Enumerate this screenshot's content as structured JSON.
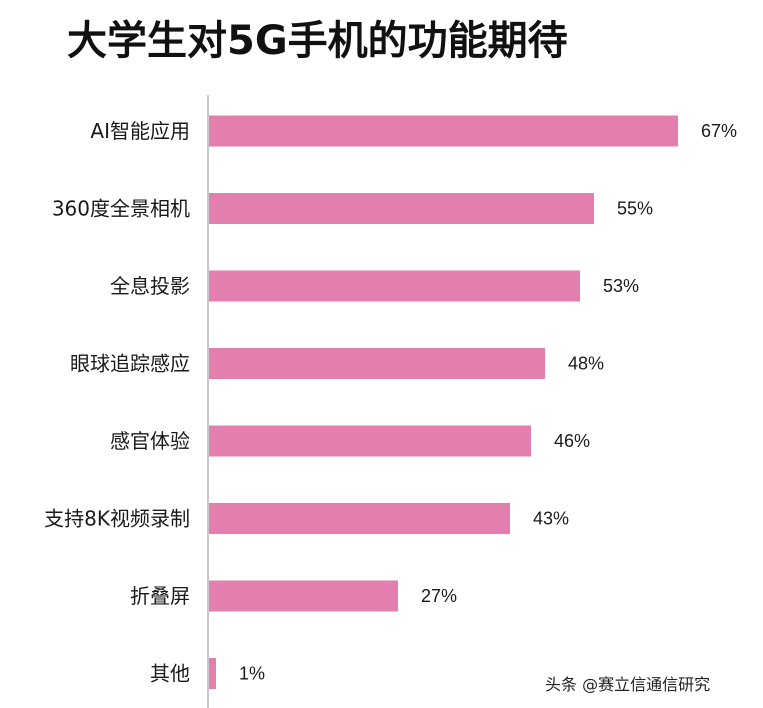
{
  "title": "大学生对5G手机的功能期待",
  "watermark": "头条 @赛立信通信研究",
  "colors": {
    "bar": "#e27fae",
    "axis": "#c8c8c8",
    "text": "#1a1a1a"
  },
  "chart_data": {
    "type": "bar",
    "orientation": "horizontal",
    "title": "大学生对5G手机的功能期待",
    "categories": [
      "AI智能应用",
      "360度全景相机",
      "全息投影",
      "眼球追踪感应",
      "感官体验",
      "支持8K视频录制",
      "折叠屏",
      "其他"
    ],
    "values": [
      67,
      55,
      53,
      48,
      46,
      43,
      27,
      1
    ],
    "value_labels": [
      "67%",
      "55%",
      "53%",
      "48%",
      "46%",
      "43%",
      "27%",
      "1%"
    ],
    "xlim": [
      0,
      70
    ],
    "grid": false,
    "legend": "none"
  }
}
